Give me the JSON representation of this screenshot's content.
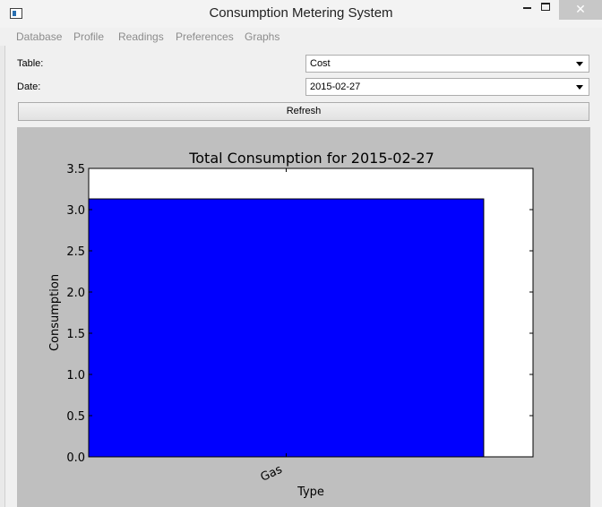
{
  "window": {
    "title": "Consumption Metering System",
    "close_glyph": "✕"
  },
  "menu": {
    "items": [
      "Database",
      "Profile",
      "Readings",
      "Preferences",
      "Graphs"
    ]
  },
  "form": {
    "table_label": "Table:",
    "table_value": "Cost",
    "date_label": "Date:",
    "date_value": "2015-02-27",
    "refresh_label": "Refresh"
  },
  "colors": {
    "bar": "#0000ff",
    "plot_background": "#bfbfbf"
  },
  "chart_data": {
    "type": "bar",
    "title": "Total Consumption for 2015-02-27",
    "xlabel": "Type",
    "ylabel": "Consumption",
    "categories": [
      "Gas"
    ],
    "values": [
      3.13
    ],
    "ylim": [
      0,
      3.5
    ],
    "yticks": [
      "0.0",
      "0.5",
      "1.0",
      "1.5",
      "2.0",
      "2.5",
      "3.0",
      "3.5"
    ],
    "grid": false
  }
}
